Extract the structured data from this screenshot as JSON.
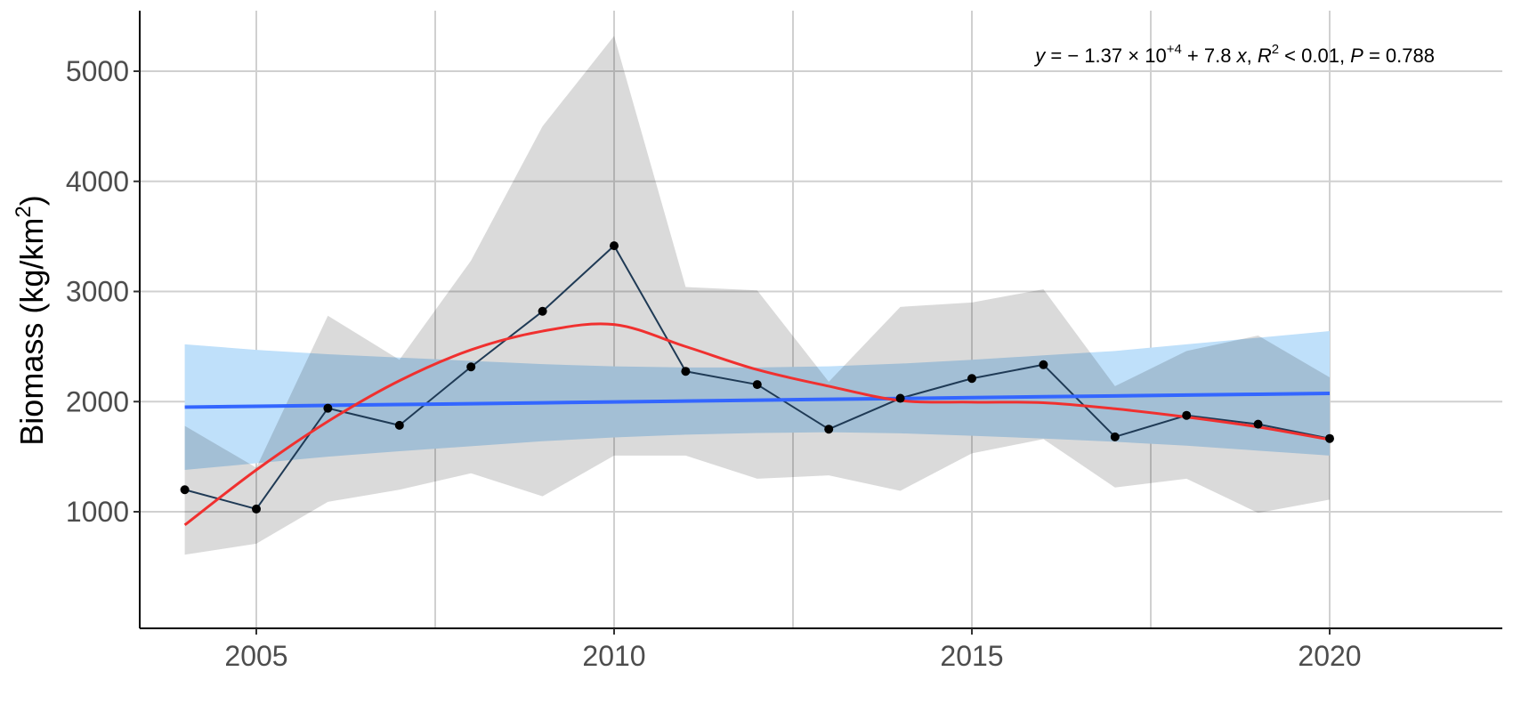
{
  "chart_data": {
    "type": "line",
    "title": "",
    "xlabel": "",
    "ylabel": "Biomass (kg/km2)",
    "ylabel_parts": {
      "main": "Biomass (kg/km",
      "sup": "2",
      "close": ")"
    },
    "xlim": [
      2003.2,
      2020.8
    ],
    "ylim": [
      390,
      5560
    ],
    "x_ticks": [
      2005,
      2010,
      2015,
      2020
    ],
    "y_ticks": [
      1000,
      2000,
      3000,
      4000,
      5000
    ],
    "grid": true,
    "legend": null,
    "x": [
      2004,
      2005,
      2006,
      2007,
      2008,
      2009,
      2010,
      2011,
      2012,
      2013,
      2014,
      2015,
      2016,
      2017,
      2018,
      2019,
      2020
    ],
    "series": [
      {
        "name": "Observed biomass",
        "type": "line+points",
        "color": "#000000",
        "values": [
          1200,
          1025,
          1940,
          1785,
          2315,
          2820,
          3415,
          2275,
          2155,
          1750,
          2030,
          2210,
          2335,
          1680,
          1875,
          1795,
          1665
        ]
      },
      {
        "name": "Observed upper bound",
        "type": "ribbon-upper",
        "color": "#d9d9d9",
        "values": [
          1780,
          1400,
          2780,
          2380,
          3280,
          4500,
          5320,
          3040,
          3010,
          2180,
          2860,
          2900,
          3020,
          2140,
          2460,
          2600,
          2220
        ]
      },
      {
        "name": "Observed lower bound",
        "type": "ribbon-lower",
        "color": "#d9d9d9",
        "values": [
          610,
          710,
          1090,
          1200,
          1350,
          1140,
          1510,
          1510,
          1300,
          1330,
          1190,
          1530,
          1660,
          1220,
          1300,
          990,
          1110
        ]
      },
      {
        "name": "Linear trend",
        "type": "line",
        "color": "#3366ff",
        "values": [
          1950,
          1958,
          1966,
          1974,
          1981,
          1989,
          1997,
          2005,
          2013,
          2021,
          2028,
          2036,
          2044,
          2052,
          2060,
          2067,
          2075
        ]
      },
      {
        "name": "Linear trend CI upper",
        "type": "ribbon-upper",
        "color": "#bfe0fa",
        "values": [
          2520,
          2470,
          2430,
          2400,
          2370,
          2340,
          2320,
          2310,
          2310,
          2320,
          2345,
          2380,
          2420,
          2460,
          2520,
          2580,
          2640
        ]
      },
      {
        "name": "Linear trend CI lower",
        "type": "ribbon-lower",
        "color": "#bfe0fa",
        "values": [
          1380,
          1440,
          1500,
          1550,
          1595,
          1640,
          1675,
          1700,
          1715,
          1722,
          1712,
          1690,
          1665,
          1635,
          1600,
          1555,
          1510
        ]
      },
      {
        "name": "Smoothed trend",
        "type": "line",
        "color": "#f0302f",
        "values": [
          880,
          1380,
          1820,
          2190,
          2470,
          2640,
          2700,
          2500,
          2290,
          2140,
          2010,
          1995,
          1990,
          1935,
          1860,
          1770,
          1655
        ]
      }
    ],
    "annotations": [
      {
        "text": "y = -1.37 × 10^+4 + 7.8 x, R^2 < 0.01, P = 0.788",
        "position": "top-right"
      }
    ]
  },
  "annotation": {
    "y": "y",
    "eq": " = − 1.37 × 10",
    "exp": "+4",
    "slope": " + 7.8 ",
    "x": "x",
    "sep1": ", ",
    "R": "R",
    "r2sup": "2",
    "r2": " < 0.01, ",
    "P": "P",
    "p": " = 0.788"
  }
}
